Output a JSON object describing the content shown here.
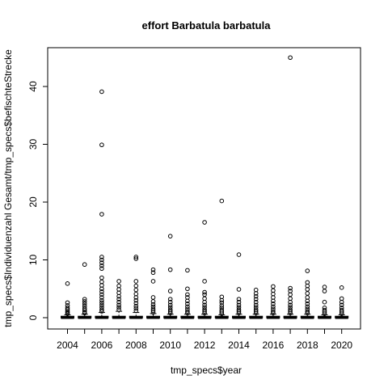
{
  "chart_data": {
    "type": "boxplot",
    "title": "effort Barbatula barbatula",
    "xlabel": "tmp_specs$year",
    "ylabel": "tmp_specs$Individuenzahl Gesamt/tmp_specs$befischteStrecke",
    "categories": [
      "2004",
      "2005",
      "2006",
      "2007",
      "2008",
      "2009",
      "2010",
      "2011",
      "2012",
      "2013",
      "2014",
      "2015",
      "2016",
      "2017",
      "2018",
      "2019",
      "2020"
    ],
    "x_tick_labels": [
      "2004",
      "2006",
      "2008",
      "2010",
      "2012",
      "2014",
      "2016",
      "2018",
      "2020"
    ],
    "y_ticks": [
      0,
      10,
      20,
      30,
      40
    ],
    "ylim": [
      -1.8,
      46.5
    ],
    "grid": false,
    "boxes": [
      {
        "year": "2004",
        "upper_whisker": 0.5,
        "outliers": [
          0.7,
          0.9,
          1.1,
          1.4,
          1.7,
          2.1,
          2.6,
          5.9
        ]
      },
      {
        "year": "2005",
        "upper_whisker": 0.6,
        "outliers": [
          0.8,
          1.0,
          1.3,
          1.6,
          2.0,
          2.4,
          2.8,
          3.2,
          9.2
        ]
      },
      {
        "year": "2006",
        "upper_whisker": 0.9,
        "outliers": [
          1.1,
          1.4,
          1.8,
          2.2,
          2.6,
          3.0,
          3.5,
          4.0,
          4.5,
          5.0,
          5.6,
          6.2,
          6.9,
          8.5,
          9.0,
          9.5,
          10.0,
          10.5,
          17.9,
          29.9,
          39.1
        ]
      },
      {
        "year": "2007",
        "upper_whisker": 1.1,
        "outliers": [
          1.4,
          1.8,
          2.2,
          2.7,
          3.2,
          3.7,
          4.3,
          4.9,
          5.5,
          6.3
        ]
      },
      {
        "year": "2008",
        "upper_whisker": 0.9,
        "outliers": [
          1.2,
          1.6,
          2.0,
          2.5,
          3.0,
          3.5,
          4.1,
          4.8,
          5.5,
          6.3,
          10.2,
          10.5
        ]
      },
      {
        "year": "2009",
        "upper_whisker": 0.7,
        "outliers": [
          0.9,
          1.2,
          1.5,
          1.9,
          2.3,
          2.8,
          3.5,
          6.3,
          7.8,
          8.3
        ]
      },
      {
        "year": "2010",
        "upper_whisker": 0.6,
        "outliers": [
          0.8,
          1.1,
          1.4,
          1.8,
          2.2,
          2.7,
          3.2,
          4.6,
          8.3,
          14.1
        ]
      },
      {
        "year": "2011",
        "upper_whisker": 0.6,
        "outliers": [
          0.8,
          1.1,
          1.5,
          1.9,
          2.4,
          2.9,
          3.5,
          4.0,
          5.0,
          8.2
        ]
      },
      {
        "year": "2012",
        "upper_whisker": 0.6,
        "outliers": [
          0.8,
          1.1,
          1.4,
          1.8,
          2.2,
          2.7,
          3.3,
          4.0,
          4.4,
          6.3,
          16.5
        ]
      },
      {
        "year": "2013",
        "upper_whisker": 0.5,
        "outliers": [
          0.7,
          1.0,
          1.3,
          1.7,
          2.1,
          2.6,
          3.0,
          3.6,
          20.2
        ]
      },
      {
        "year": "2014",
        "upper_whisker": 0.6,
        "outliers": [
          0.8,
          1.1,
          1.4,
          1.8,
          2.2,
          2.7,
          3.2,
          4.9,
          10.9
        ]
      },
      {
        "year": "2015",
        "upper_whisker": 0.6,
        "outliers": [
          0.8,
          1.1,
          1.4,
          1.8,
          2.2,
          2.7,
          3.2,
          3.7,
          4.2,
          4.8
        ]
      },
      {
        "year": "2016",
        "upper_whisker": 0.6,
        "outliers": [
          0.8,
          1.1,
          1.5,
          1.9,
          2.4,
          2.9,
          3.5,
          4.1,
          4.7,
          5.4
        ]
      },
      {
        "year": "2017",
        "upper_whisker": 0.6,
        "outliers": [
          0.8,
          1.1,
          1.4,
          1.8,
          2.2,
          2.7,
          3.3,
          4.0,
          4.6,
          5.1,
          45.0
        ]
      },
      {
        "year": "2018",
        "upper_whisker": 0.6,
        "outliers": [
          0.8,
          1.1,
          1.5,
          1.9,
          2.4,
          2.9,
          3.5,
          4.2,
          4.9,
          5.5,
          6.1,
          8.1
        ]
      },
      {
        "year": "2019",
        "upper_whisker": 0.5,
        "outliers": [
          0.7,
          1.0,
          1.3,
          1.7,
          2.7,
          4.6,
          5.3
        ]
      },
      {
        "year": "2020",
        "upper_whisker": 0.5,
        "outliers": [
          0.7,
          1.0,
          1.3,
          1.7,
          2.2,
          2.7,
          3.3,
          5.2
        ]
      }
    ]
  }
}
